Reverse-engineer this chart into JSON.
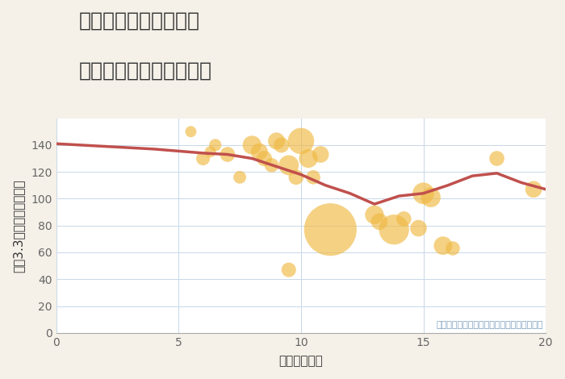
{
  "title_line1": "兵庫県宝塚市山本南の",
  "title_line2": "駅距離別中古戸建て価格",
  "xlabel": "駅距離（分）",
  "ylabel": "坪（3.3㎡）単価（万円）",
  "annotation": "円の大きさは、取引のあった物件面積を示す",
  "background_color": "#f5f0e8",
  "plot_background": "#ffffff",
  "grid_color": "#c8d8e8",
  "xlim": [
    0,
    20
  ],
  "ylim": [
    0,
    160
  ],
  "xticks": [
    0,
    5,
    10,
    15,
    20
  ],
  "yticks": [
    0,
    20,
    40,
    60,
    80,
    100,
    120,
    140
  ],
  "bubble_color": "#f0b942",
  "bubble_alpha": 0.65,
  "line_color": "#c0504d",
  "line_width": 2.5,
  "scatter_x": [
    5.5,
    6.0,
    6.3,
    6.5,
    7.0,
    7.5,
    8.0,
    8.3,
    8.5,
    8.8,
    9.0,
    9.2,
    9.5,
    9.8,
    10.0,
    10.3,
    10.5,
    10.8,
    9.5,
    11.2,
    13.0,
    13.2,
    13.8,
    14.2,
    14.8,
    15.0,
    15.3,
    15.8,
    16.2,
    18.0,
    19.5
  ],
  "scatter_y": [
    150,
    130,
    135,
    140,
    133,
    116,
    140,
    135,
    130,
    125,
    143,
    140,
    125,
    116,
    143,
    130,
    116,
    133,
    47,
    77,
    88,
    83,
    77,
    85,
    78,
    104,
    101,
    65,
    63,
    130,
    107
  ],
  "scatter_size": [
    100,
    150,
    100,
    120,
    180,
    130,
    280,
    230,
    190,
    160,
    230,
    190,
    320,
    180,
    550,
    280,
    160,
    220,
    170,
    2200,
    280,
    220,
    720,
    180,
    220,
    370,
    310,
    270,
    160,
    180,
    220
  ],
  "line_x": [
    0,
    2,
    4,
    6,
    7,
    8,
    9,
    10,
    11,
    12,
    13,
    14,
    15,
    16,
    17,
    18,
    19,
    20
  ],
  "line_y": [
    141,
    139,
    137,
    134,
    133,
    130,
    124,
    118,
    110,
    104,
    96,
    102,
    104,
    110,
    117,
    119,
    112,
    107
  ],
  "title_color": "#333333",
  "tick_color": "#666666",
  "annotation_color": "#7a9ec0",
  "title_fontsize": 18,
  "axis_label_fontsize": 11,
  "tick_fontsize": 10,
  "annotation_fontsize": 8
}
